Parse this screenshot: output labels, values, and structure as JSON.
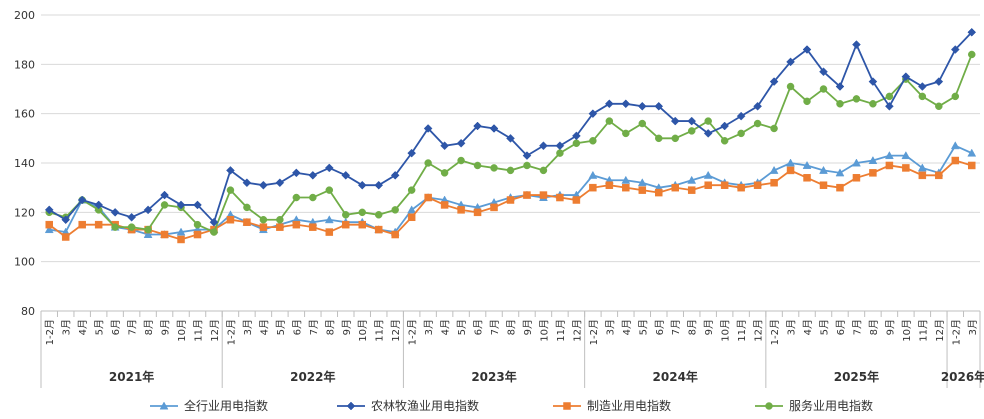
{
  "chart_data": {
    "type": "line",
    "title": "",
    "xlabel": "",
    "ylabel": "",
    "ylim": [
      80,
      200
    ],
    "yticks": [
      80,
      100,
      120,
      140,
      160,
      180,
      200
    ],
    "grid": "horizontal",
    "legend_position": "bottom",
    "x": [
      "1-2月",
      "3月",
      "4月",
      "5月",
      "6月",
      "7月",
      "8月",
      "9月",
      "10月",
      "11月",
      "12月",
      "1-2月",
      "3月",
      "4月",
      "5月",
      "6月",
      "7月",
      "8月",
      "9月",
      "10月",
      "11月",
      "12月",
      "1-2月",
      "3月",
      "4月",
      "5月",
      "6月",
      "7月",
      "8月",
      "9月",
      "10月",
      "11月",
      "12月",
      "1-2月",
      "3月",
      "4月",
      "5月",
      "6月",
      "7月",
      "8月",
      "9月",
      "10月",
      "11月",
      "12月",
      "1-2月",
      "3月",
      "4月",
      "5月",
      "6月",
      "7月",
      "8月",
      "9月",
      "10月",
      "11月",
      "12月",
      "1-2月",
      "3月"
    ],
    "years": [
      {
        "label": "2021年",
        "start": 0,
        "end": 10
      },
      {
        "label": "2022年",
        "start": 11,
        "end": 21
      },
      {
        "label": "2023年",
        "start": 22,
        "end": 32
      },
      {
        "label": "2024年",
        "start": 33,
        "end": 43
      },
      {
        "label": "2025年",
        "start": 44,
        "end": 54
      },
      {
        "label": "2026年",
        "start": 55,
        "end": 56
      }
    ],
    "series": [
      {
        "name": "全行业用电指数",
        "color": "#5B9BD5",
        "marker": "triangle",
        "values": [
          113,
          112,
          125,
          122,
          114,
          113,
          111,
          111,
          112,
          113,
          113,
          119,
          116,
          113,
          115,
          117,
          116,
          117,
          116,
          116,
          113,
          112,
          121,
          126,
          125,
          123,
          122,
          124,
          126,
          127,
          126,
          127,
          127,
          135,
          133,
          133,
          132,
          130,
          131,
          133,
          135,
          132,
          131,
          132,
          137,
          140,
          139,
          137,
          136,
          140,
          141,
          143,
          143,
          138,
          136,
          147,
          144
        ]
      },
      {
        "name": "农林牧渔业用电指数",
        "color": "#2E56A8",
        "marker": "diamond",
        "values": [
          121,
          117,
          125,
          123,
          120,
          118,
          121,
          127,
          123,
          123,
          116,
          137,
          132,
          131,
          132,
          136,
          135,
          138,
          135,
          131,
          131,
          135,
          144,
          154,
          147,
          148,
          155,
          154,
          150,
          143,
          147,
          147,
          151,
          160,
          164,
          164,
          163,
          163,
          157,
          157,
          152,
          155,
          159,
          163,
          173,
          181,
          186,
          177,
          171,
          188,
          173,
          163,
          175,
          171,
          173,
          186,
          193
        ]
      },
      {
        "name": "制造业用电指数",
        "color": "#ED7D31",
        "marker": "square",
        "values": [
          115,
          110,
          115,
          115,
          115,
          113,
          113,
          111,
          109,
          111,
          113,
          117,
          116,
          114,
          114,
          115,
          114,
          112,
          115,
          115,
          113,
          111,
          118,
          126,
          123,
          121,
          120,
          122,
          125,
          127,
          127,
          126,
          125,
          130,
          131,
          130,
          129,
          128,
          130,
          129,
          131,
          131,
          130,
          131,
          132,
          137,
          134,
          131,
          130,
          134,
          136,
          139,
          138,
          135,
          135,
          141,
          139
        ]
      },
      {
        "name": "服务业用电指数",
        "color": "#70AD47",
        "marker": "circle",
        "values": [
          120,
          118,
          125,
          121,
          114,
          114,
          113,
          123,
          122,
          115,
          112,
          129,
          122,
          117,
          117,
          126,
          126,
          129,
          119,
          120,
          119,
          121,
          129,
          140,
          136,
          141,
          139,
          138,
          137,
          139,
          137,
          144,
          148,
          149,
          157,
          152,
          156,
          150,
          150,
          153,
          157,
          149,
          152,
          156,
          154,
          171,
          165,
          170,
          164,
          166,
          164,
          167,
          174,
          167,
          163,
          167,
          184
        ]
      }
    ]
  }
}
